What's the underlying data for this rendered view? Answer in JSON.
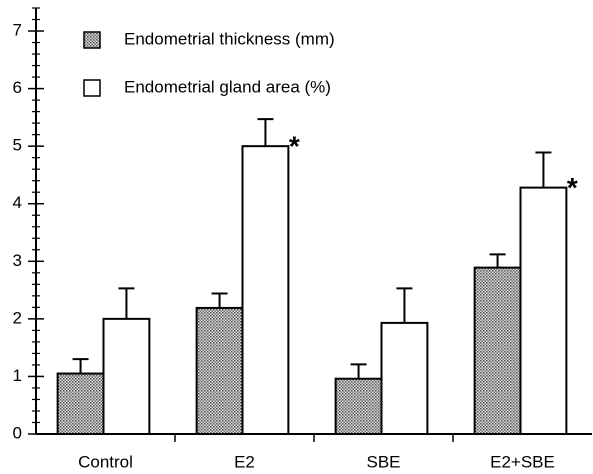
{
  "chart_data": {
    "type": "bar",
    "categories": [
      "Control",
      "E2",
      "SBE",
      "E2+SBE"
    ],
    "series": [
      {
        "name": "Endometrial thickness (mm)",
        "color": "#9a9a9a",
        "values": [
          1.05,
          2.19,
          0.96,
          2.89
        ],
        "errors": [
          0.25,
          0.25,
          0.25,
          0.23
        ],
        "markers": [
          null,
          "*",
          null,
          "*"
        ]
      },
      {
        "name": "Endometrial gland area (%)",
        "color": "#ffffff",
        "values": [
          2.0,
          5.0,
          1.93,
          4.28
        ],
        "errors": [
          0.53,
          0.47,
          0.6,
          0.61
        ],
        "markers": [
          null,
          "*",
          null,
          "*"
        ]
      }
    ],
    "ylim": [
      0,
      7.4
    ],
    "yticks": [
      0,
      1,
      2,
      3,
      4,
      5,
      6,
      7
    ],
    "legend": "upper left"
  }
}
